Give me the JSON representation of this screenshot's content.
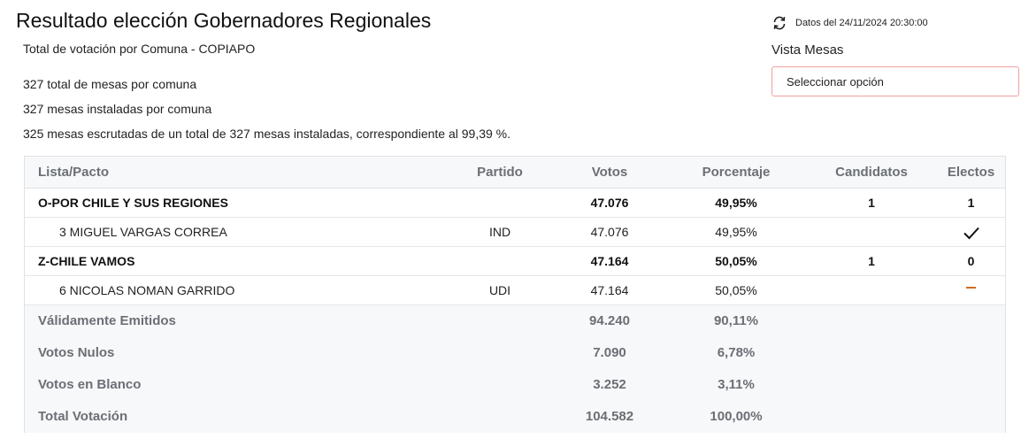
{
  "header": {
    "title": "Resultado elección Gobernadores Regionales",
    "subtitle": "Total de votación por Comuna - COPIAPO"
  },
  "stats": {
    "total_mesas": "327 total de mesas por comuna",
    "mesas_instaladas": "327 mesas instaladas por comuna",
    "mesas_escrutadas": "325 mesas escrutadas de un total de 327 mesas instaladas, correspondiente al 99,39 %."
  },
  "sidebar": {
    "refresh_icon": "refresh-icon",
    "data_timestamp": "Datos del 24/11/2024 20:30:00",
    "vista_label": "Vista Mesas",
    "select_value": "Seleccionar opción"
  },
  "table": {
    "headers": [
      "Lista/Pacto",
      "Partido",
      "Votos",
      "Porcentaje",
      "Candidatos",
      "Electos"
    ],
    "rows": [
      {
        "type": "pacto",
        "name": "O-POR CHILE Y SUS REGIONES",
        "partido": "",
        "votos": "47.076",
        "porcentaje": "49,95%",
        "candidatos": "1",
        "electos": "1"
      },
      {
        "type": "candidato",
        "name": "3 MIGUEL VARGAS CORREA",
        "partido": "IND",
        "votos": "47.076",
        "porcentaje": "49,95%",
        "candidatos": "",
        "electos_icon": "check-icon"
      },
      {
        "type": "pacto",
        "name": "Z-CHILE VAMOS",
        "partido": "",
        "votos": "47.164",
        "porcentaje": "50,05%",
        "candidatos": "1",
        "electos": "0"
      },
      {
        "type": "candidato",
        "name": "6 NICOLAS NOMAN GARRIDO",
        "partido": "UDI",
        "votos": "47.164",
        "porcentaje": "50,05%",
        "candidatos": "",
        "electos_icon": "dash-icon"
      }
    ],
    "summary": [
      {
        "label": "Válidamente Emitidos",
        "votos": "94.240",
        "porcentaje": "90,11%"
      },
      {
        "label": "Votos Nulos",
        "votos": "7.090",
        "porcentaje": "6,78%"
      },
      {
        "label": "Votos en Blanco",
        "votos": "3.252",
        "porcentaje": "3,11%"
      },
      {
        "label": "Total Votación",
        "votos": "104.582",
        "porcentaje": "100,00%"
      }
    ]
  },
  "colors": {
    "select_border": "#f0a0a0",
    "not_elected_mark": "#d46a1f",
    "header_text": "#6b6f75"
  }
}
